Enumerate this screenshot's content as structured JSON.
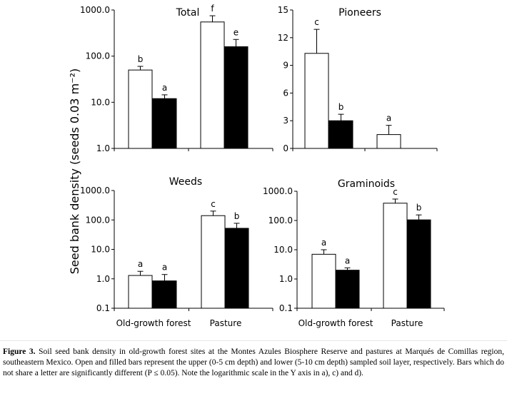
{
  "figure": {
    "y_axis_label": "Seed bank density (seeds 0.03 m⁻²)",
    "category_labels": [
      "Old-growth forest",
      "Pasture"
    ],
    "caption_label": "Figure 3.",
    "caption_text": " Soil seed bank density in old-growth forest sites at the Montes Azules Biosphere Reserve and pastures at Marqués de Comillas region, southeastern Mexico. Open and filled bars represent the upper (0-5 cm depth) and lower (5-10 cm depth) sampled soil layer, respectively. Bars which do not share a letter are significantly different (P ≤ 0.05). Note the logarithmic scale in the Y axis in a), c) and d).",
    "colors": {
      "upper": "#ffffff",
      "lower": "#000000",
      "axis": "#000000"
    }
  },
  "chart_data": [
    {
      "type": "bar",
      "scale": "log",
      "title": "Total",
      "ylim": [
        1,
        1000
      ],
      "tick_labels": [
        "1.0",
        "10.0",
        "100.0",
        "1000.0"
      ],
      "categories": [
        "Old-growth forest",
        "Pasture"
      ],
      "series": [
        {
          "name": "0-5 cm (open)",
          "values": [
            50,
            550
          ],
          "errors": [
            10,
            200
          ],
          "letters": [
            "b",
            "f"
          ]
        },
        {
          "name": "5-10 cm (filled)",
          "values": [
            12,
            160
          ],
          "errors": [
            2.5,
            70
          ],
          "letters": [
            "a",
            "e"
          ]
        }
      ]
    },
    {
      "type": "bar",
      "scale": "linear",
      "title": "Pioneers",
      "ylim": [
        0,
        15
      ],
      "tick_labels": [
        "0",
        "3",
        "6",
        "9",
        "12",
        "15"
      ],
      "categories": [
        "Old-growth forest",
        "Pasture"
      ],
      "series": [
        {
          "name": "0-5 cm (open)",
          "values": [
            10.3,
            1.5
          ],
          "errors": [
            2.6,
            1.0
          ],
          "letters": [
            "c",
            "a"
          ]
        },
        {
          "name": "5-10 cm (filled)",
          "values": [
            3.0,
            0
          ],
          "errors": [
            0.7,
            0
          ],
          "letters": [
            "b",
            ""
          ]
        }
      ]
    },
    {
      "type": "bar",
      "scale": "log",
      "title": "Weeds",
      "ylim": [
        0.1,
        1000
      ],
      "tick_labels": [
        "0.1",
        "1.0",
        "10.0",
        "100.0",
        "1000.0"
      ],
      "categories": [
        "Old-growth forest",
        "Pasture"
      ],
      "series": [
        {
          "name": "0-5 cm (open)",
          "values": [
            1.3,
            140
          ],
          "errors": [
            0.5,
            60
          ],
          "letters": [
            "a",
            "c"
          ]
        },
        {
          "name": "5-10 cm (filled)",
          "values": [
            0.85,
            52
          ],
          "errors": [
            0.55,
            25
          ],
          "letters": [
            "a",
            "b"
          ]
        }
      ]
    },
    {
      "type": "bar",
      "scale": "log",
      "title": "Graminoids",
      "ylim": [
        0.1,
        1000
      ],
      "tick_labels": [
        "0.1",
        "1.0",
        "10.0",
        "100.0",
        "1000.0"
      ],
      "categories": [
        "Old-growth forest",
        "Pasture"
      ],
      "series": [
        {
          "name": "0-5 cm (open)",
          "values": [
            7,
            390
          ],
          "errors": [
            3,
            150
          ],
          "letters": [
            "a",
            "c"
          ]
        },
        {
          "name": "5-10 cm (filled)",
          "values": [
            2,
            105
          ],
          "errors": [
            0.4,
            50
          ],
          "letters": [
            "a",
            "b"
          ]
        }
      ]
    }
  ]
}
